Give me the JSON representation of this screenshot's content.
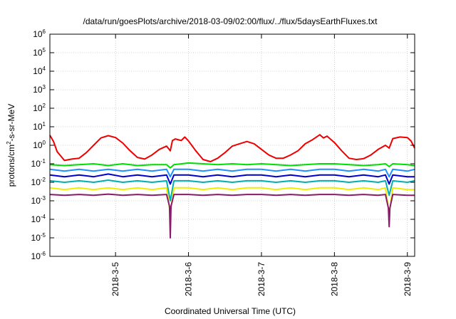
{
  "chart_data": {
    "type": "line",
    "title": "/data/run/goesPlots/archive/2018-03-09/02:00/flux/../flux/5daysEarthFluxes.txt",
    "xlabel": "Coordinated Universal Time (UTC)",
    "ylabel": "protons/cm²-s-sr-MeV",
    "ylabel_parts": {
      "a": "protons/cm",
      "sup": "2",
      "b": "-s-sr-MeV"
    },
    "yscale": "log",
    "ylim_exp": [
      -6,
      6
    ],
    "y_ticks": [
      {
        "base": "10",
        "exp": "-6"
      },
      {
        "base": "10",
        "exp": "-5"
      },
      {
        "base": "10",
        "exp": "-4"
      },
      {
        "base": "10",
        "exp": "-3"
      },
      {
        "base": "10",
        "exp": "-2"
      },
      {
        "base": "10",
        "exp": "-1"
      },
      {
        "base": "10",
        "exp": "0"
      },
      {
        "base": "10",
        "exp": "1"
      },
      {
        "base": "10",
        "exp": "2"
      },
      {
        "base": "10",
        "exp": "3"
      },
      {
        "base": "10",
        "exp": "4"
      },
      {
        "base": "10",
        "exp": "5"
      },
      {
        "base": "10",
        "exp": "6"
      }
    ],
    "xlim_days": [
      4.1,
      9.1
    ],
    "x_ticks": [
      {
        "label": "2018-3-5",
        "day": 5
      },
      {
        "label": "2018-3-6",
        "day": 6
      },
      {
        "label": "2018-3-7",
        "day": 7
      },
      {
        "label": "2018-3-8",
        "day": 8
      },
      {
        "label": "2018-3-9",
        "day": 9
      }
    ],
    "grid": true,
    "legend": "none",
    "series": [
      {
        "color": "#ee0000",
        "x": [
          4.1,
          4.15,
          4.2,
          4.3,
          4.4,
          4.5,
          4.6,
          4.7,
          4.8,
          4.9,
          5.0,
          5.1,
          5.2,
          5.3,
          5.4,
          5.5,
          5.6,
          5.7,
          5.75,
          5.78,
          5.82,
          5.9,
          5.95,
          6.0,
          6.1,
          6.2,
          6.3,
          6.4,
          6.5,
          6.6,
          6.7,
          6.8,
          6.9,
          7.0,
          7.1,
          7.2,
          7.3,
          7.4,
          7.5,
          7.6,
          7.7,
          7.8,
          7.85,
          7.9,
          8.0,
          8.1,
          8.2,
          8.3,
          8.4,
          8.5,
          8.6,
          8.7,
          8.75,
          8.8,
          8.9,
          9.0,
          9.05,
          9.1
        ],
        "values": [
          3.5,
          1.6,
          0.45,
          0.15,
          0.18,
          0.2,
          0.4,
          1.0,
          2.5,
          3.3,
          2.6,
          1.3,
          0.5,
          0.22,
          0.18,
          0.3,
          0.6,
          0.9,
          0.5,
          1.8,
          2.2,
          1.8,
          2.8,
          1.7,
          0.5,
          0.17,
          0.13,
          0.2,
          0.4,
          0.9,
          1.2,
          1.6,
          1.2,
          0.6,
          0.3,
          0.2,
          0.2,
          0.3,
          0.5,
          1.2,
          2.0,
          3.7,
          2.5,
          3.1,
          1.4,
          0.5,
          0.2,
          0.17,
          0.19,
          0.3,
          0.6,
          1.0,
          0.7,
          2.3,
          2.8,
          2.6,
          1.7,
          0.7
        ]
      },
      {
        "color": "#00dd00",
        "x": [
          4.1,
          4.3,
          4.5,
          4.7,
          4.9,
          5.1,
          5.3,
          5.5,
          5.7,
          5.75,
          5.8,
          6.0,
          6.2,
          6.4,
          6.6,
          6.8,
          7.0,
          7.2,
          7.4,
          7.6,
          7.8,
          8.0,
          8.2,
          8.4,
          8.6,
          8.7,
          8.75,
          8.8,
          9.0,
          9.1
        ],
        "values": [
          0.09,
          0.08,
          0.09,
          0.1,
          0.08,
          0.1,
          0.08,
          0.09,
          0.09,
          0.06,
          0.09,
          0.11,
          0.1,
          0.09,
          0.1,
          0.09,
          0.1,
          0.09,
          0.08,
          0.09,
          0.1,
          0.1,
          0.09,
          0.08,
          0.09,
          0.1,
          0.07,
          0.1,
          0.09,
          0.08
        ]
      },
      {
        "color": "#1e90ff",
        "x": [
          4.1,
          4.3,
          4.5,
          4.7,
          4.9,
          5.1,
          5.3,
          5.5,
          5.7,
          5.75,
          5.8,
          6.0,
          6.2,
          6.4,
          6.6,
          6.8,
          7.0,
          7.2,
          7.4,
          7.6,
          7.8,
          8.0,
          8.2,
          8.4,
          8.6,
          8.7,
          8.75,
          8.8,
          9.0,
          9.1
        ],
        "values": [
          0.05,
          0.04,
          0.05,
          0.04,
          0.05,
          0.04,
          0.05,
          0.04,
          0.05,
          0.02,
          0.05,
          0.05,
          0.04,
          0.05,
          0.04,
          0.05,
          0.05,
          0.04,
          0.05,
          0.04,
          0.05,
          0.05,
          0.04,
          0.05,
          0.04,
          0.05,
          0.02,
          0.05,
          0.04,
          0.05
        ]
      },
      {
        "color": "#0000cc",
        "x": [
          4.1,
          4.3,
          4.5,
          4.7,
          4.9,
          5.1,
          5.3,
          5.5,
          5.7,
          5.75,
          5.8,
          6.0,
          6.2,
          6.4,
          6.6,
          6.8,
          7.0,
          7.2,
          7.4,
          7.6,
          7.8,
          8.0,
          8.2,
          8.4,
          8.6,
          8.7,
          8.75,
          8.8,
          9.0,
          9.1
        ],
        "values": [
          0.025,
          0.02,
          0.025,
          0.02,
          0.028,
          0.02,
          0.025,
          0.02,
          0.025,
          0.008,
          0.025,
          0.025,
          0.02,
          0.025,
          0.02,
          0.025,
          0.025,
          0.02,
          0.025,
          0.02,
          0.025,
          0.025,
          0.02,
          0.025,
          0.02,
          0.025,
          0.008,
          0.025,
          0.02,
          0.02
        ]
      },
      {
        "color": "#00b0b0",
        "x": [
          4.1,
          4.3,
          4.5,
          4.7,
          4.9,
          5.1,
          5.3,
          5.5,
          5.7,
          5.75,
          5.8,
          6.0,
          6.2,
          6.4,
          6.6,
          6.8,
          7.0,
          7.2,
          7.4,
          7.6,
          7.8,
          8.0,
          8.2,
          8.4,
          8.6,
          8.7,
          8.75,
          8.8,
          9.0,
          9.1
        ],
        "values": [
          0.012,
          0.01,
          0.012,
          0.01,
          0.013,
          0.01,
          0.012,
          0.01,
          0.012,
          0.001,
          0.012,
          0.012,
          0.01,
          0.012,
          0.01,
          0.012,
          0.012,
          0.01,
          0.012,
          0.01,
          0.012,
          0.012,
          0.01,
          0.012,
          0.01,
          0.012,
          0.002,
          0.012,
          0.01,
          0.012
        ]
      },
      {
        "color": "#eeee00",
        "x": [
          4.1,
          4.3,
          4.5,
          4.7,
          4.9,
          5.1,
          5.3,
          5.5,
          5.7,
          5.75,
          5.8,
          6.0,
          6.2,
          6.4,
          6.6,
          6.8,
          7.0,
          7.2,
          7.4,
          7.6,
          7.8,
          8.0,
          8.2,
          8.4,
          8.6,
          8.7,
          8.75,
          8.8,
          9.0,
          9.1
        ],
        "values": [
          0.005,
          0.004,
          0.005,
          0.004,
          0.005,
          0.004,
          0.005,
          0.004,
          0.005,
          0.0002,
          0.005,
          0.005,
          0.004,
          0.005,
          0.004,
          0.005,
          0.005,
          0.004,
          0.005,
          0.004,
          0.005,
          0.005,
          0.004,
          0.005,
          0.004,
          0.005,
          0.0002,
          0.005,
          0.004,
          0.004
        ]
      },
      {
        "color": "#8b1a6b",
        "x": [
          4.1,
          4.3,
          4.5,
          4.7,
          4.9,
          5.1,
          5.3,
          5.5,
          5.7,
          5.74,
          5.75,
          5.76,
          5.8,
          6.0,
          6.2,
          6.4,
          6.6,
          6.8,
          7.0,
          7.2,
          7.4,
          7.6,
          7.8,
          8.0,
          8.2,
          8.4,
          8.6,
          8.7,
          8.74,
          8.75,
          8.76,
          8.8,
          9.0,
          9.1
        ],
        "values": [
          0.0022,
          0.002,
          0.0022,
          0.002,
          0.0023,
          0.002,
          0.0022,
          0.002,
          0.0022,
          0.0005,
          1e-05,
          0.0005,
          0.0022,
          0.0022,
          0.002,
          0.0022,
          0.002,
          0.0022,
          0.0022,
          0.002,
          0.0022,
          0.002,
          0.0022,
          0.0022,
          0.002,
          0.0022,
          0.002,
          0.0022,
          0.0004,
          4e-05,
          0.0004,
          0.0022,
          0.002,
          0.002
        ]
      }
    ]
  }
}
